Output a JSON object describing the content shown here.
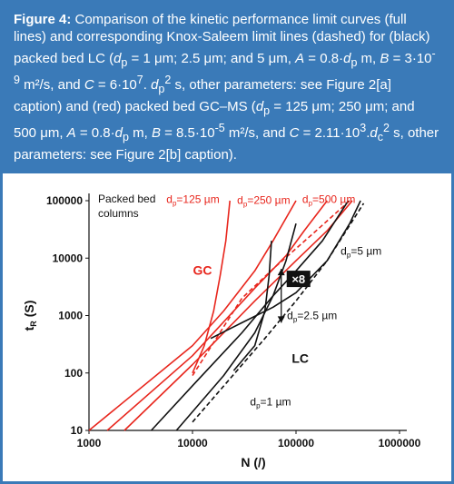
{
  "caption": {
    "label": "Figure 4:",
    "parts": [
      " Comparison of the kinetic performance limit curves (full lines) and corresponding Knox-Saleem limit lines (dashed) for (black) packed bed LC (",
      "d",
      "p",
      " = 1 μm; 2.5 μm; and 5 μm, ",
      "A",
      " = 0.8·",
      "d",
      "p",
      " m, ",
      "B",
      " = 3·10",
      "-9",
      " m²/s, and ",
      "C",
      " = 6·10",
      "7",
      ". ",
      "d",
      "p",
      "2",
      " s, other parameters: see Figure 2[a] caption) and (red) packed bed GC–MS (",
      "d",
      "p",
      " = 125 μm; 250 μm; and 500 μm, ",
      "A",
      " = 0.8·",
      "d",
      "p",
      " m, ",
      "B",
      " = 8.5·10",
      "-5",
      " m²/s, and ",
      "C",
      " = 2.11·10",
      "3",
      ".",
      "d",
      "c",
      "2",
      " s, other parameters: see Figure 2[b] caption)."
    ]
  },
  "chart_data": {
    "type": "line",
    "xlabel": "N (/)",
    "ylabel": "t",
    "ylabel_sub": "R",
    "ylabel_unit": " (S)",
    "xscale": "log",
    "yscale": "log",
    "xlim": [
      1000,
      1000000
    ],
    "ylim": [
      10,
      100000
    ],
    "xticks": [
      "1000",
      "10000",
      "100000",
      "1000000"
    ],
    "yticks": [
      "10",
      "100",
      "1000",
      "10000",
      "100000"
    ],
    "legend_text": [
      "Packed bed",
      "columns"
    ],
    "region_labels": [
      {
        "text": "GC",
        "x": 12500,
        "y": 6200,
        "color": "#e8261d"
      },
      {
        "text": "LC",
        "x": 110000,
        "y": 180,
        "color": "#111111"
      }
    ],
    "annotation": {
      "text": "×8",
      "x1": 72000,
      "y1": 6500,
      "x2": 72000,
      "y2": 750
    },
    "curve_labels": [
      {
        "main": "d",
        "sub": "p",
        "rest": "=125 µm",
        "x": 5600,
        "y": 92000,
        "color": "#e8261d"
      },
      {
        "main": "d",
        "sub": "p",
        "rest": "=250 µm",
        "x": 27000,
        "y": 88000,
        "color": "#e8261d"
      },
      {
        "main": "d",
        "sub": "p",
        "rest": "=500 µm",
        "x": 115000,
        "y": 92000,
        "color": "#e8261d"
      },
      {
        "main": "d",
        "sub": "p",
        "rest": "=5 µm",
        "x": 270000,
        "y": 11500,
        "color": "#111111"
      },
      {
        "main": "d",
        "sub": "p",
        "rest": "=2.5 µm",
        "x": 82000,
        "y": 870,
        "color": "#111111"
      },
      {
        "main": "d",
        "sub": "p",
        "rest": "=1 µm",
        "x": 36000,
        "y": 27,
        "color": "#111111"
      }
    ],
    "series": [
      {
        "group": "GC",
        "style": "solid",
        "color": "#e8261d",
        "points": [
          [
            1000,
            10
          ],
          [
            10000,
            300
          ],
          [
            20000,
            1200
          ],
          [
            40000,
            6000
          ],
          [
            60000,
            20000
          ],
          [
            100000,
            100000
          ]
        ]
      },
      {
        "group": "GC",
        "style": "solid",
        "color": "#e8261d",
        "points": [
          [
            1500,
            10
          ],
          [
            10000,
            200
          ],
          [
            40000,
            3000
          ],
          [
            80000,
            11000
          ],
          [
            120000,
            30000
          ],
          [
            200000,
            100000
          ]
        ]
      },
      {
        "group": "GC",
        "style": "solid",
        "color": "#e8261d",
        "points": [
          [
            2200,
            10
          ],
          [
            10000,
            140
          ],
          [
            40000,
            1800
          ],
          [
            100000,
            9000
          ],
          [
            200000,
            30000
          ],
          [
            350000,
            100000
          ]
        ]
      },
      {
        "group": "GC",
        "style": "solid",
        "color": "#e8261d",
        "points": [
          [
            10000,
            100
          ],
          [
            13000,
            300
          ],
          [
            16000,
            1200
          ],
          [
            18500,
            5000
          ],
          [
            21000,
            20000
          ],
          [
            23000,
            100000
          ]
        ]
      },
      {
        "group": "GC",
        "style": "dashed",
        "color": "#e8261d",
        "points": [
          [
            10000,
            90
          ],
          [
            30000,
            2000
          ],
          [
            60000,
            6500
          ],
          [
            150000,
            28000
          ],
          [
            330000,
            100000
          ]
        ]
      },
      {
        "group": "LC",
        "style": "solid",
        "color": "#111111",
        "points": [
          [
            4000,
            10
          ],
          [
            10000,
            60
          ],
          [
            30000,
            500
          ],
          [
            60000,
            2200
          ],
          [
            100000,
            6000
          ],
          [
            180000,
            20000
          ],
          [
            320000,
            100000
          ]
        ]
      },
      {
        "group": "LC",
        "style": "solid",
        "color": "#111111",
        "points": [
          [
            15000,
            400
          ],
          [
            30000,
            750
          ],
          [
            60000,
            1400
          ],
          [
            100000,
            2500
          ],
          [
            200000,
            9000
          ],
          [
            330000,
            40000
          ],
          [
            420000,
            100000
          ]
        ]
      },
      {
        "group": "LC",
        "style": "solid",
        "color": "#111111",
        "points": [
          [
            7000,
            10
          ],
          [
            20000,
            90
          ],
          [
            40000,
            500
          ],
          [
            60000,
            2200
          ],
          [
            80000,
            9000
          ],
          [
            100000,
            40000
          ]
        ]
      },
      {
        "group": "LC",
        "style": "solid",
        "color": "#111111",
        "points": [
          [
            25000,
            110
          ],
          [
            40000,
            300
          ],
          [
            50000,
            1200
          ],
          [
            55000,
            5000
          ],
          [
            58000,
            20000
          ]
        ]
      },
      {
        "group": "LC",
        "style": "dashed",
        "color": "#111111",
        "points": [
          [
            10000,
            14
          ],
          [
            50000,
            400
          ],
          [
            100000,
            1800
          ],
          [
            200000,
            9000
          ],
          [
            450000,
            90000
          ]
        ]
      }
    ]
  }
}
